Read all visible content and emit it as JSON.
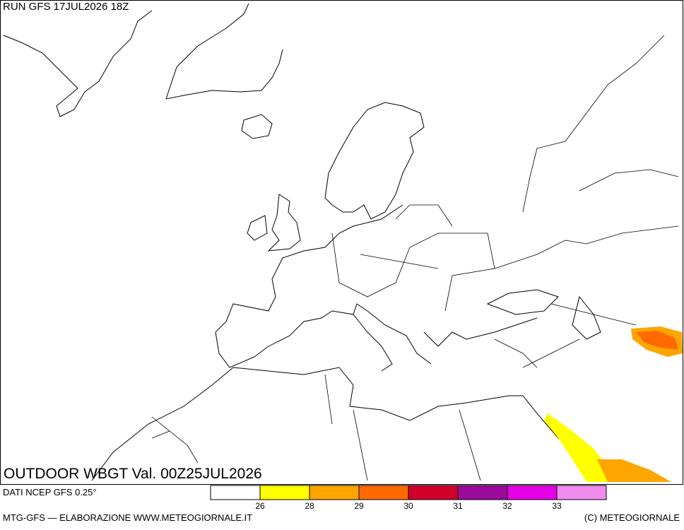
{
  "header": {
    "run": "RUN GFS 17JUL2026 18Z"
  },
  "map": {
    "title": "OUTDOOR WBGT Val. 00Z25JUL2026"
  },
  "legend": {
    "colors": [
      "#ffffff",
      "#ffff00",
      "#ffa500",
      "#ff6a00",
      "#d0002a",
      "#9b0a9b",
      "#e600e6",
      "#f08cf0"
    ],
    "ticks": [
      26,
      28,
      29,
      30,
      31,
      32,
      33
    ]
  },
  "footer": {
    "source": "DATI NCEP GFS 0.25°",
    "credit": "MTG-GFS — ELABORAZIONE WWW.METEOGIORNALE.IT",
    "copyright": "(C) METEOGIORNALE"
  }
}
